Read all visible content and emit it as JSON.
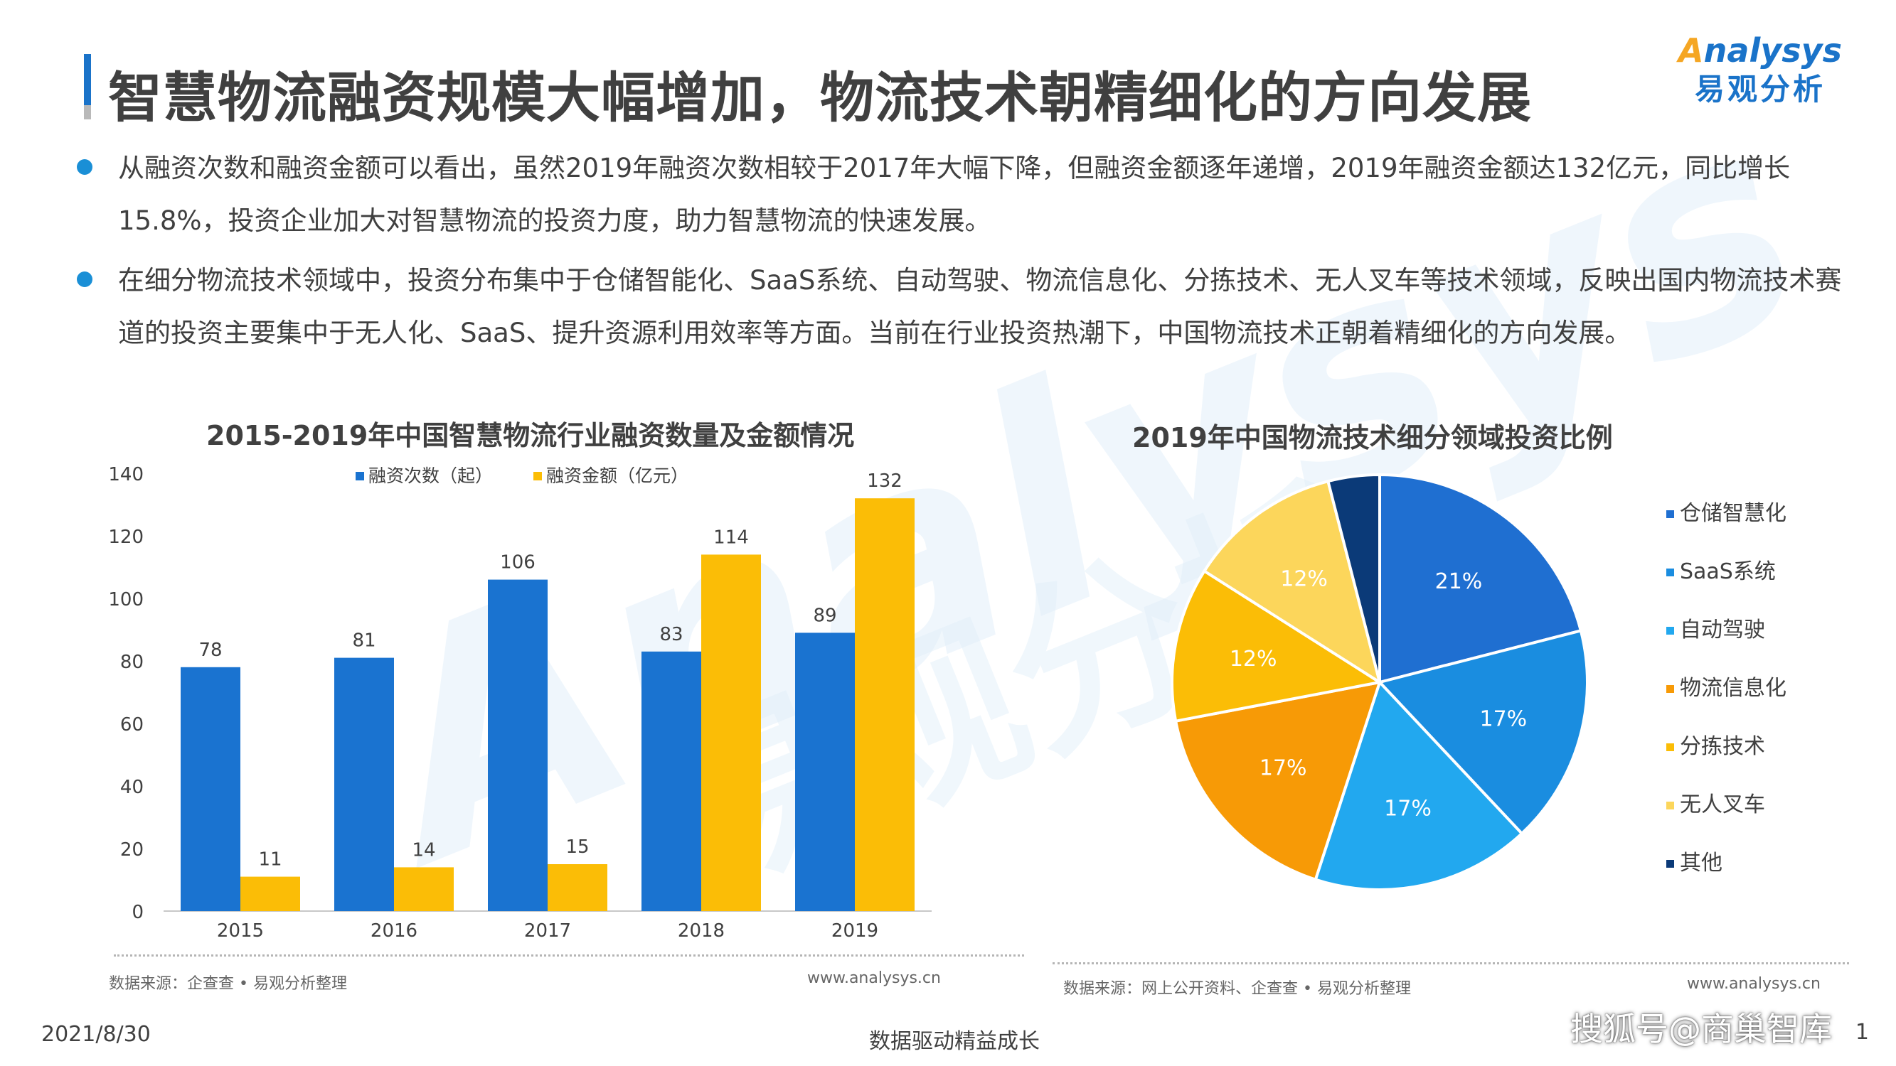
{
  "header": {
    "title": "智慧物流融资规模大幅增加，物流技术朝精细化的方向发展",
    "logo_en_prefix": "A",
    "logo_en": "nalysys",
    "logo_cn": "易观分析"
  },
  "watermark": {
    "en": "Analysys",
    "cn": "易观分析"
  },
  "bullets": [
    "从融资次数和融资金额可以看出，虽然2019年融资次数相较于2017年大幅下降，但融资金额逐年递增，2019年融资金额达132亿元，同比增长15.8%，投资企业加大对智慧物流的投资力度，助力智慧物流的快速发展。",
    "在细分物流技术领域中，投资分布集中于仓储智能化、SaaS系统、自动驾驶、物流信息化、分拣技术、无人叉车等技术领域，反映出国内物流技术赛道的投资主要集中于无人化、SaaS、提升资源利用效率等方面。当前在行业投资热潮下，中国物流技术正朝着精细化的方向发展。"
  ],
  "chart_data": [
    {
      "type": "bar",
      "title": "2015-2019年中国智慧物流行业融资数量及金额情况",
      "categories": [
        "2015",
        "2016",
        "2017",
        "2018",
        "2019"
      ],
      "series": [
        {
          "name": "融资次数（起）",
          "values": [
            78,
            81,
            106,
            83,
            89
          ],
          "color": "#1a73d0"
        },
        {
          "name": "融资金额（亿元）",
          "values": [
            11,
            14,
            15,
            114,
            132
          ],
          "color": "#fbbd06"
        }
      ],
      "ylim": [
        0,
        140
      ],
      "yticks": [
        "0",
        "20",
        "40",
        "60",
        "80",
        "100",
        "120",
        "140"
      ],
      "legend_position": "top",
      "grid": false
    },
    {
      "type": "pie",
      "title": "2019年中国物流技术细分领域投资比例",
      "labels": [
        "仓储智慧化",
        "SaaS系统",
        "自动驾驶",
        "物流信息化",
        "分拣技术",
        "无人叉车",
        "其他"
      ],
      "values": [
        21,
        17,
        17,
        17,
        12,
        12,
        4
      ],
      "value_labels": [
        "21%",
        "17%",
        "17%",
        "17%",
        "12%",
        "12%",
        ""
      ],
      "colors": [
        "#1f6fd1",
        "#1a8de0",
        "#22a8ef",
        "#f79a06",
        "#fbbd06",
        "#fcd65b",
        "#0b3a78"
      ],
      "legend_position": "right"
    }
  ],
  "sources": {
    "left": "数据来源：企查查 • 易观分析整理",
    "left_url": "www.analysys.cn",
    "right": "数据来源：网上公开资料、企查查 • 易观分析整理",
    "right_url": "www.analysys.cn"
  },
  "footer": {
    "date": "2021/8/30",
    "slogan": "数据驱动精益成长",
    "credit": "搜狐号@商巢智库",
    "page_suffix": "1"
  }
}
